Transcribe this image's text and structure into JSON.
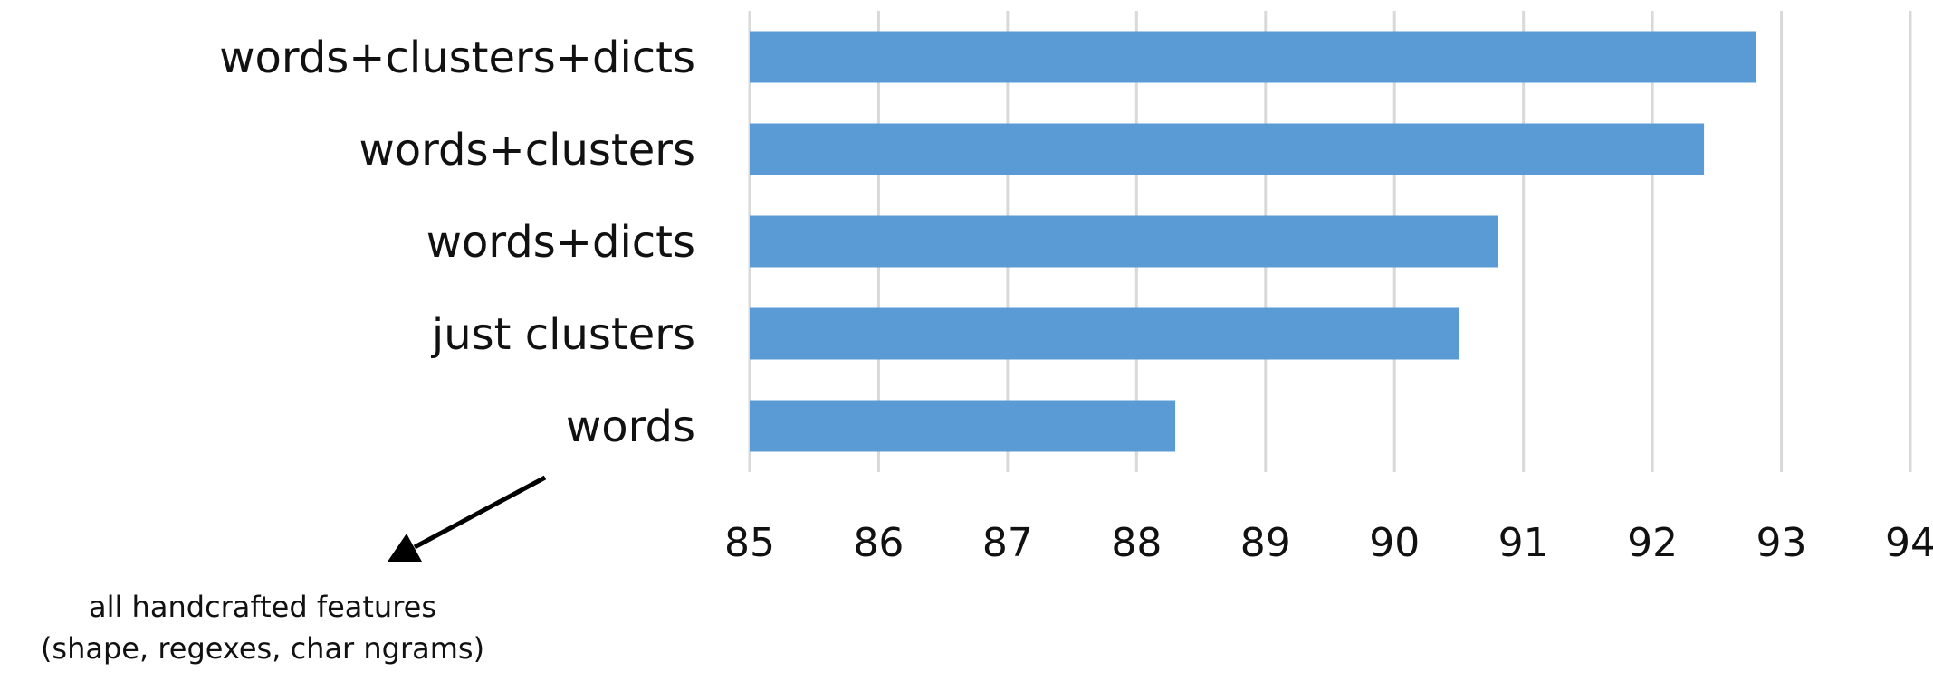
{
  "chart_data": {
    "type": "bar",
    "orientation": "horizontal",
    "categories": [
      "words+clusters+dicts",
      "words+clusters",
      "words+dicts",
      "just clusters",
      "words"
    ],
    "values": [
      92.8,
      92.4,
      90.8,
      90.5,
      88.3
    ],
    "xlim": [
      85,
      94
    ],
    "xticks": [
      "85",
      "86",
      "87",
      "88",
      "89",
      "90",
      "91",
      "92",
      "93",
      "94"
    ],
    "grid": true,
    "bar_color": "#5b9bd5",
    "grid_color": "#d9d9d9",
    "title": "",
    "xlabel": "",
    "ylabel": ""
  },
  "annotation": {
    "line1": "all handcrafted features",
    "line2": "(shape, regexes, char ngrams)",
    "points_to": "words"
  }
}
